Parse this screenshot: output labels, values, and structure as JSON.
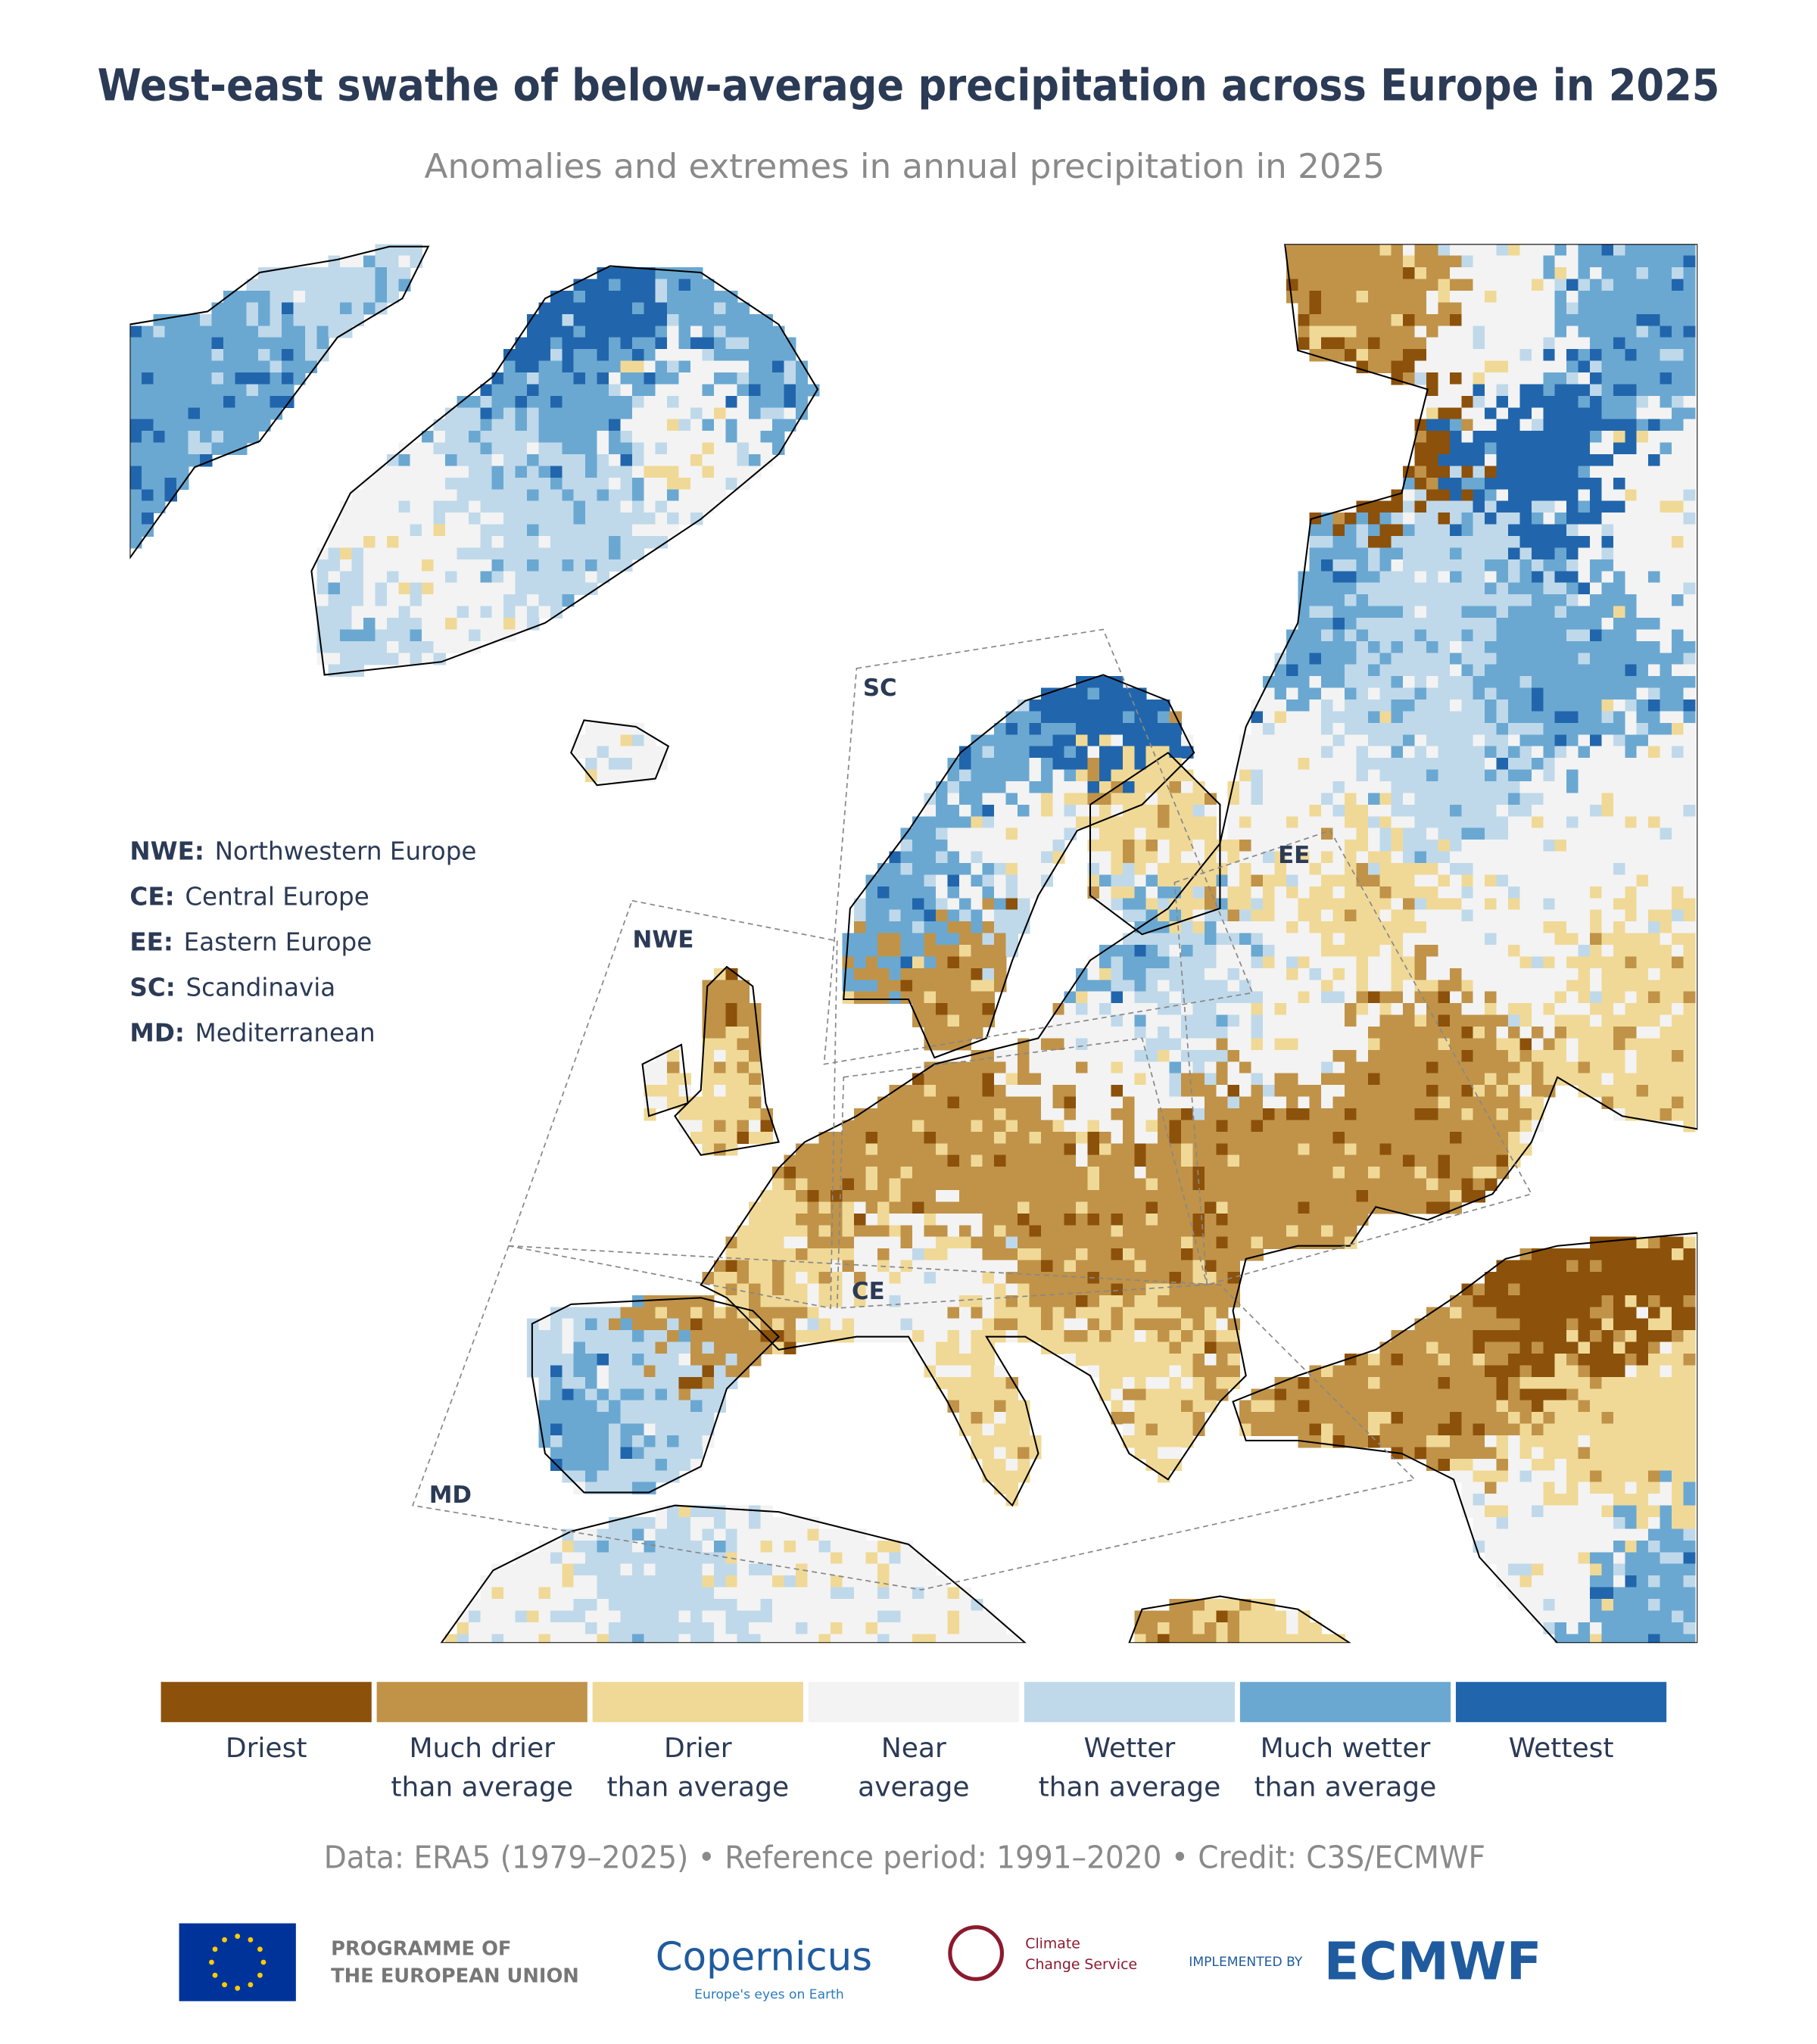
{
  "header": {
    "title": "West-east swathe of below-average precipitation across Europe in 2025",
    "subtitle": "Anomalies and extremes in annual precipitation in 2025"
  },
  "region_key": [
    {
      "abbr": "NWE:",
      "name": "Northwestern Europe"
    },
    {
      "abbr": "CE:",
      "name": "Central Europe"
    },
    {
      "abbr": "EE:",
      "name": "Eastern Europe"
    },
    {
      "abbr": "SC:",
      "name": "Scandinavia"
    },
    {
      "abbr": "MD:",
      "name": "Mediterranean"
    }
  ],
  "map_labels": [
    "SC",
    "NWE",
    "EE",
    "CE",
    "MD"
  ],
  "colorbar": [
    {
      "lines": [
        "Driest"
      ],
      "color": "#8c510a"
    },
    {
      "lines": [
        "Much drier",
        "than average"
      ],
      "color": "#c09348"
    },
    {
      "lines": [
        "Drier",
        "than average"
      ],
      "color": "#f0d996"
    },
    {
      "lines": [
        "Near",
        "average"
      ],
      "color": "#f3f3f3"
    },
    {
      "lines": [
        "Wetter",
        "than average"
      ],
      "color": "#bfd9ea"
    },
    {
      "lines": [
        "Much wetter",
        "than average"
      ],
      "color": "#6aa8d2"
    },
    {
      "lines": [
        "Wettest"
      ],
      "color": "#2166ac"
    }
  ],
  "credit": "Data: ERA5 (1979–2025) • Reference period: 1991–2020 • Credit: C3S/ECMWF",
  "logos": {
    "eu": [
      "PROGRAMME OF",
      "THE EUROPEAN UNION"
    ],
    "copernicus": "Copernicus",
    "copernicus_tagline": "Europe's eyes on Earth",
    "c3s": [
      "Climate",
      "Change Service"
    ],
    "implemented": "IMPLEMENTED BY",
    "ecmwf": "ECMWF"
  }
}
